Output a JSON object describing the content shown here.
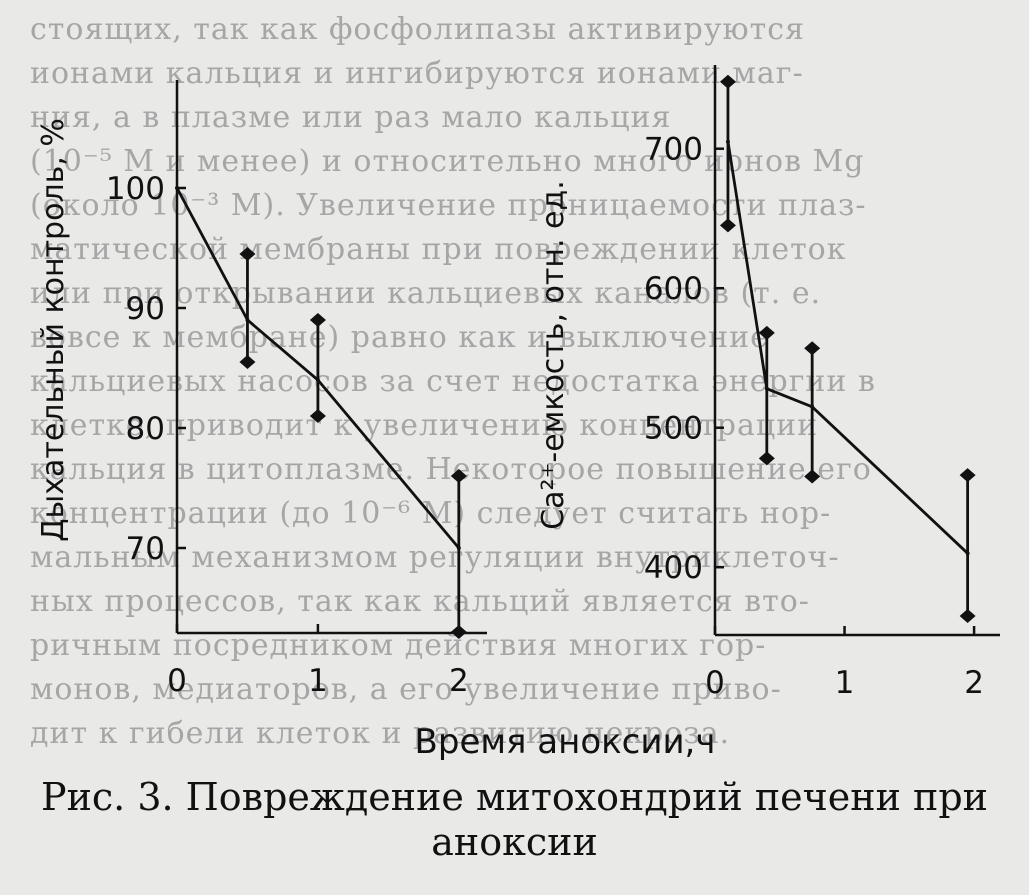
{
  "background_text": [
    "стоящих, так как фосфолипазы активируются",
    "ионами кальция и ингибируются ионами маг-",
    "ния, а в плазме или раз мало кальция",
    "(10⁻⁵ М и менее) и относительно много ионов Mg",
    "(около 10⁻³ М). Увеличение проницаемости плаз-",
    "матической мембраны при повреждении клеток",
    "или при открывании кальциевых каналов (т. е.",
    "вовсе к мембране) равно как и выключение",
    "кальциевых насосов за счет недостатка энергии в",
    "клетке, приводит к увеличению концентрации",
    "кальция в цитоплазме. Некоторое повышение его",
    "концентрации (до 10⁻⁶ М) следует считать нор-",
    "мальным механизмом регуляции внутриклеточ-",
    "ных процессов, так как кальций является вто-",
    "ричным посредником действия многих гор-",
    "монов, медиаторов, а его увеличение приво-",
    "дит к гибели клеток и развитию некроза."
  ],
  "chart_data": [
    {
      "type": "line",
      "ylabel": "Дыхательный контроль, %",
      "x_ticks": [
        "0",
        "1",
        "2"
      ],
      "y_ticks": [
        "70",
        "80",
        "90",
        "100"
      ],
      "xlim": [
        0,
        2.2
      ],
      "ylim": [
        63,
        109
      ],
      "series": [
        {
          "x": [
            0,
            0.5,
            1,
            2
          ],
          "y": [
            100,
            89,
            84,
            70
          ],
          "error_bars": [
            {
              "x": 0.5,
              "low": 85.5,
              "high": 94.5
            },
            {
              "x": 1,
              "low": 81,
              "high": 89
            },
            {
              "x": 2,
              "low": 63,
              "high": 76
            }
          ]
        }
      ]
    },
    {
      "type": "line",
      "ylabel": "Ca²⁺-емкость, отн. ед.",
      "x_ticks": [
        "0",
        "1",
        "2"
      ],
      "y_ticks": [
        "400",
        "500",
        "600",
        "700"
      ],
      "xlim": [
        0,
        2.2
      ],
      "ylim": [
        355,
        760
      ],
      "series": [
        {
          "x": [
            0.1,
            0.4,
            0.75,
            1.95
          ],
          "y": [
            705,
            528,
            515,
            410
          ],
          "error_bars": [
            {
              "x": 0.1,
              "low": 645,
              "high": 748
            },
            {
              "x": 0.4,
              "low": 478,
              "high": 568
            },
            {
              "x": 0.75,
              "low": 465,
              "high": 557
            },
            {
              "x": 1.95,
              "low": 365,
              "high": 466
            }
          ]
        }
      ]
    }
  ],
  "xlabel": "Время аноксии,ч",
  "caption": {
    "line1": "Рис. 3. Повреждение митохондрий печени при",
    "line2": "аноксии"
  }
}
